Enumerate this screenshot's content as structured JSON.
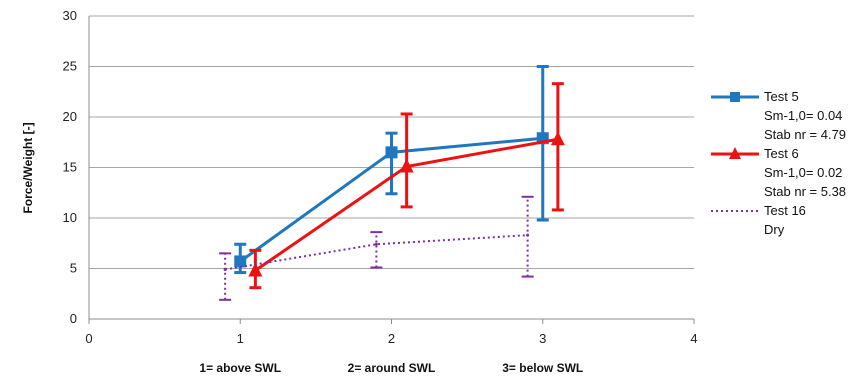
{
  "chart_data": {
    "type": "line",
    "ylabel": "Force/Weight [-]",
    "xlim": [
      0,
      4
    ],
    "ylim": [
      0,
      30
    ],
    "x_ticks": [
      "0",
      "1",
      "2",
      "3",
      "4"
    ],
    "y_ticks": [
      "0",
      "5",
      "10",
      "15",
      "20",
      "25",
      "30"
    ],
    "grid": "horizontal",
    "legend_placement": "right",
    "category_labels": [
      "1= above SWL",
      "2= around SWL",
      "3= below SWL"
    ],
    "series": [
      {
        "name": "Test 5",
        "legend_lines": [
          "Test 5",
          "Sm-1,0= 0.04",
          "Stab nr = 4.79"
        ],
        "color": "#1f77c0",
        "marker": "square",
        "line_style": "solid",
        "x": [
          1.0,
          2.0,
          3.0
        ],
        "y": [
          5.7,
          16.5,
          17.9
        ],
        "err_low": [
          4.6,
          12.4,
          9.8
        ],
        "err_high": [
          7.4,
          18.4,
          25.0
        ]
      },
      {
        "name": "Test 6",
        "legend_lines": [
          "Test 6",
          "Sm-1,0= 0.02",
          "Stab nr = 5.38"
        ],
        "color": "#ee1111",
        "marker": "triangle",
        "line_style": "solid",
        "x": [
          1.1,
          2.1,
          3.1
        ],
        "y": [
          4.8,
          15.1,
          17.8
        ],
        "err_low": [
          3.1,
          11.1,
          10.8
        ],
        "err_high": [
          6.8,
          20.3,
          23.3
        ]
      },
      {
        "name": "Test 16",
        "legend_lines": [
          "Test 16",
          "Dry"
        ],
        "color": "#7b2fa0",
        "marker": "none",
        "line_style": "dotted",
        "x": [
          0.9,
          1.9,
          2.9
        ],
        "y": [
          4.9,
          7.4,
          8.3
        ],
        "err_low": [
          1.9,
          5.1,
          4.2
        ],
        "err_high": [
          6.5,
          8.6,
          12.1
        ]
      }
    ]
  }
}
